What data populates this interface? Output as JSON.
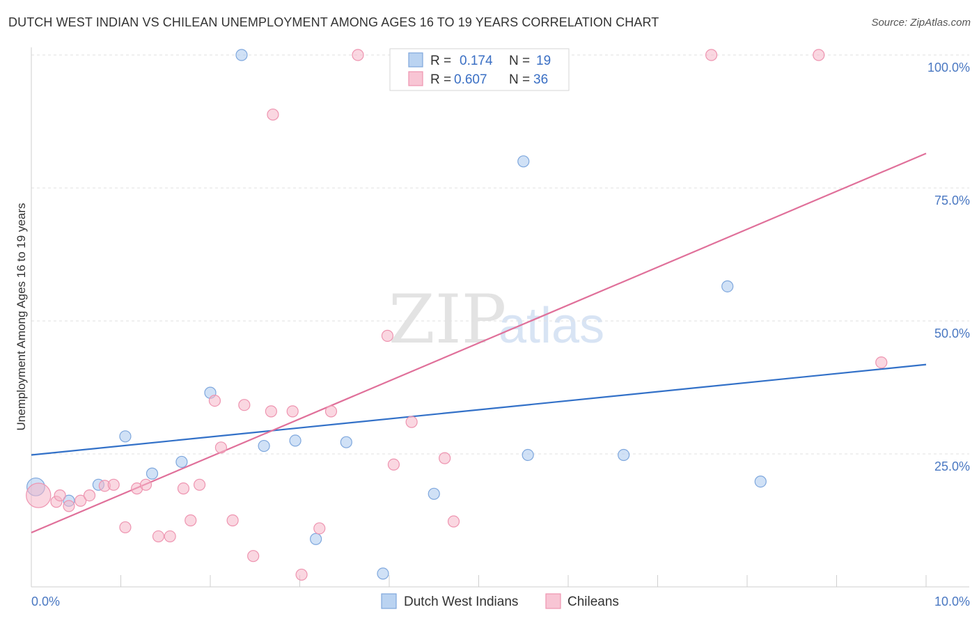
{
  "title": "DUTCH WEST INDIAN VS CHILEAN UNEMPLOYMENT AMONG AGES 16 TO 19 YEARS CORRELATION CHART",
  "source": "Source: ZipAtlas.com",
  "watermark": {
    "zip": "ZIP",
    "atlas": "atlas"
  },
  "chart_data": {
    "type": "scatter",
    "ylabel": "Unemployment Among Ages 16 to 19 years",
    "xlim": [
      0,
      10
    ],
    "ylim": [
      0,
      100
    ],
    "x_tick_labels": [
      {
        "value": 0,
        "label": "0.0%"
      },
      {
        "value": 10,
        "label": "10.0%"
      }
    ],
    "y_tick_labels": [
      {
        "value": 100,
        "label": "100.0%"
      },
      {
        "value": 75,
        "label": "75.0%"
      },
      {
        "value": 50,
        "label": "50.0%"
      },
      {
        "value": 25,
        "label": "25.0%"
      }
    ],
    "grid": true,
    "legend_stats": [
      {
        "r_label": "R =",
        "r": "0.174",
        "n_label": "N =",
        "n": "19",
        "color": "#a9c8ee"
      },
      {
        "r_label": "R =",
        "r": "0.607",
        "n_label": "N =",
        "n": "36",
        "color": "#f6b6c9"
      }
    ],
    "series": [
      {
        "name": "Dutch West Indians",
        "color": "#a9c8ee",
        "stroke": "#7ea7dd",
        "line_color": "#3371c8",
        "trend": [
          [
            0,
            24.8
          ],
          [
            10,
            41.8
          ]
        ],
        "points": [
          [
            0.05,
            18.8,
            1.6
          ],
          [
            0.42,
            16.2,
            1
          ],
          [
            0.75,
            19.2,
            1
          ],
          [
            1.05,
            28.3,
            1
          ],
          [
            1.35,
            21.3,
            1
          ],
          [
            1.68,
            23.5,
            1
          ],
          [
            2.0,
            36.5,
            1
          ],
          [
            2.35,
            100,
            1
          ],
          [
            2.6,
            26.5,
            1
          ],
          [
            2.95,
            27.5,
            1
          ],
          [
            3.18,
            9.0,
            1
          ],
          [
            3.52,
            27.2,
            1
          ],
          [
            3.93,
            2.5,
            1
          ],
          [
            4.5,
            17.5,
            1
          ],
          [
            5.5,
            80.0,
            1
          ],
          [
            5.55,
            24.8,
            1
          ],
          [
            6.62,
            24.8,
            1
          ],
          [
            7.78,
            56.5,
            1
          ],
          [
            8.15,
            19.8,
            1
          ]
        ]
      },
      {
        "name": "Chileans",
        "color": "#f6b6c9",
        "stroke": "#ee94b0",
        "line_color": "#e0709a",
        "trend": [
          [
            0,
            10.2
          ],
          [
            10,
            81.5
          ]
        ],
        "points": [
          [
            0.08,
            17.2,
            2.2
          ],
          [
            0.28,
            16.0,
            1
          ],
          [
            0.32,
            17.2,
            1
          ],
          [
            0.42,
            15.2,
            1
          ],
          [
            0.55,
            16.2,
            1
          ],
          [
            0.65,
            17.2,
            1
          ],
          [
            0.82,
            19.0,
            1
          ],
          [
            0.92,
            19.2,
            1
          ],
          [
            1.05,
            11.2,
            1
          ],
          [
            1.18,
            18.5,
            1
          ],
          [
            1.28,
            19.2,
            1
          ],
          [
            1.42,
            9.5,
            1
          ],
          [
            1.55,
            9.5,
            1
          ],
          [
            1.7,
            18.5,
            1
          ],
          [
            1.78,
            12.5,
            1
          ],
          [
            1.88,
            19.2,
            1
          ],
          [
            2.05,
            35.0,
            1
          ],
          [
            2.12,
            26.2,
            1
          ],
          [
            2.25,
            12.5,
            1
          ],
          [
            2.38,
            34.2,
            1
          ],
          [
            2.48,
            5.8,
            1
          ],
          [
            2.7,
            88.8,
            1
          ],
          [
            2.68,
            33.0,
            1
          ],
          [
            2.92,
            33.0,
            1
          ],
          [
            3.02,
            2.3,
            1
          ],
          [
            3.22,
            11.0,
            1
          ],
          [
            3.35,
            33.0,
            1
          ],
          [
            3.65,
            100,
            1
          ],
          [
            3.98,
            47.2,
            1
          ],
          [
            4.05,
            23.0,
            1
          ],
          [
            4.25,
            31.0,
            1
          ],
          [
            4.62,
            24.2,
            1
          ],
          [
            4.72,
            12.3,
            1
          ],
          [
            7.6,
            100,
            1
          ],
          [
            8.8,
            100,
            1
          ],
          [
            9.5,
            42.2,
            1
          ]
        ]
      }
    ]
  }
}
